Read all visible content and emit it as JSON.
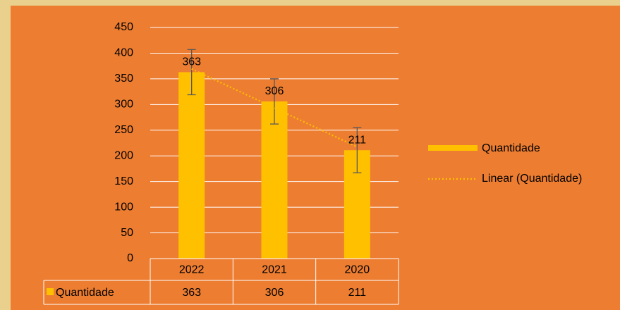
{
  "chart_data": {
    "type": "bar",
    "categories": [
      "2022",
      "2021",
      "2020"
    ],
    "series": [
      {
        "name": "Quantidade",
        "color": "#ffc000",
        "values": [
          363,
          306,
          211
        ],
        "errors": [
          44,
          44,
          44
        ]
      }
    ],
    "trendline": {
      "name": "Linear (Quantidade)",
      "kind": "linear",
      "color": "#ffc000"
    },
    "ylim": [
      0,
      450
    ],
    "yticks": [
      0,
      50,
      100,
      150,
      200,
      250,
      300,
      350,
      400,
      450
    ],
    "grid": true,
    "legend": "right",
    "data_table": true
  }
}
